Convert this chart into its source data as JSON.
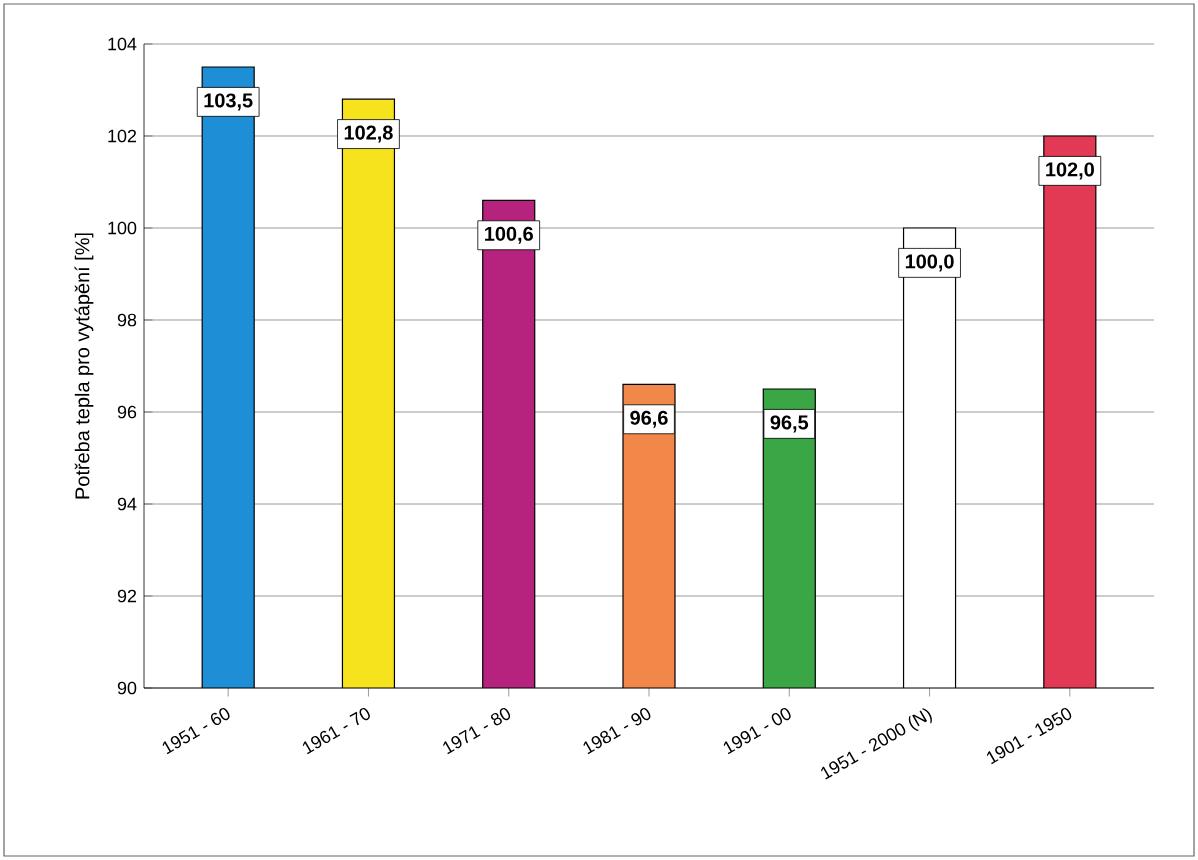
{
  "chart_data": {
    "type": "bar",
    "ylabel": "Potřeba tepla pro vytápění  [%]",
    "categories": [
      "1951 - 60",
      "1961 - 70",
      "1971 - 80",
      "1981 - 90",
      "1991 - 00",
      "1951 - 2000 (N)",
      "1901 - 1950"
    ],
    "values": [
      103.5,
      102.8,
      100.6,
      96.6,
      96.5,
      100.0,
      102.0
    ],
    "colors": [
      "#1e8fd6",
      "#f7e21e",
      "#b5237e",
      "#f2874a",
      "#3aa645",
      "#ffffff",
      "#e23a55"
    ],
    "value_labels": [
      "103,5",
      "102,8",
      "100,6",
      "96,6",
      "96,5",
      "100,0",
      "102,0"
    ],
    "ylim": [
      90,
      104
    ],
    "yticks": [
      90,
      92,
      94,
      96,
      98,
      100,
      102,
      104
    ],
    "grid": "y"
  }
}
